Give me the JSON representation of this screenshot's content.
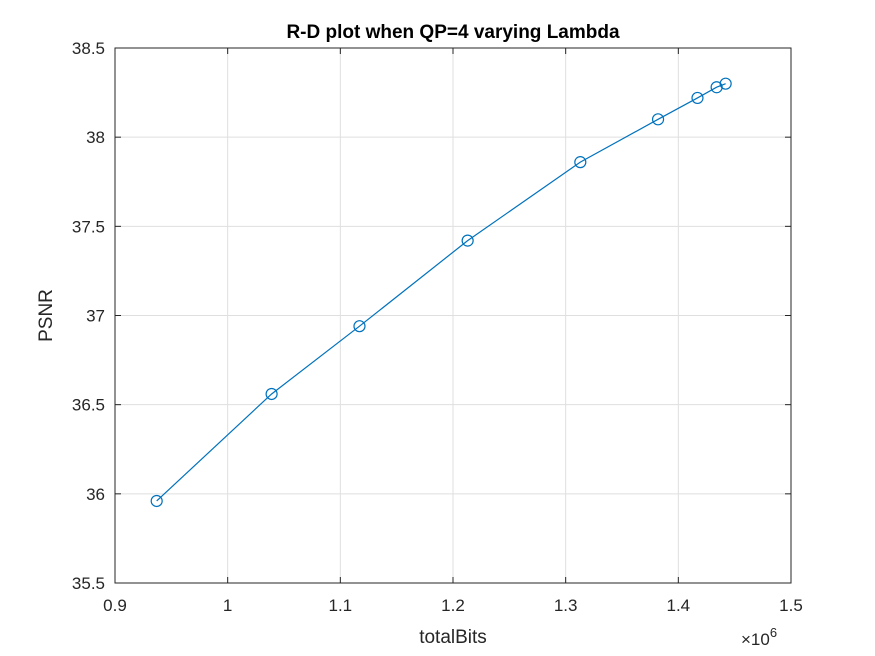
{
  "chart_data": {
    "type": "line",
    "title": "R-D plot when QP=4 varying Lambda",
    "xlabel": "totalBits",
    "ylabel": "PSNR",
    "x_multiplier": {
      "base": "×10",
      "exponent": "6"
    },
    "xlim": [
      0.9,
      1.5
    ],
    "ylim": [
      35.5,
      38.5
    ],
    "xticks": [
      0.9,
      1.0,
      1.1,
      1.2,
      1.3,
      1.4,
      1.5
    ],
    "xtick_labels": [
      "0.9",
      "1",
      "1.1",
      "1.2",
      "1.3",
      "1.4",
      "1.5"
    ],
    "yticks": [
      35.5,
      36.0,
      36.5,
      37.0,
      37.5,
      38.0,
      38.5
    ],
    "ytick_labels": [
      "35.5",
      "36",
      "36.5",
      "37",
      "37.5",
      "38",
      "38.5"
    ],
    "grid": true,
    "series": [
      {
        "color": "#0072bd",
        "marker": "circle",
        "x": [
          0.937,
          1.039,
          1.117,
          1.213,
          1.313,
          1.382,
          1.417,
          1.434,
          1.442
        ],
        "y": [
          35.96,
          36.56,
          36.94,
          37.42,
          37.86,
          38.1,
          38.22,
          38.28,
          38.3
        ]
      }
    ]
  }
}
